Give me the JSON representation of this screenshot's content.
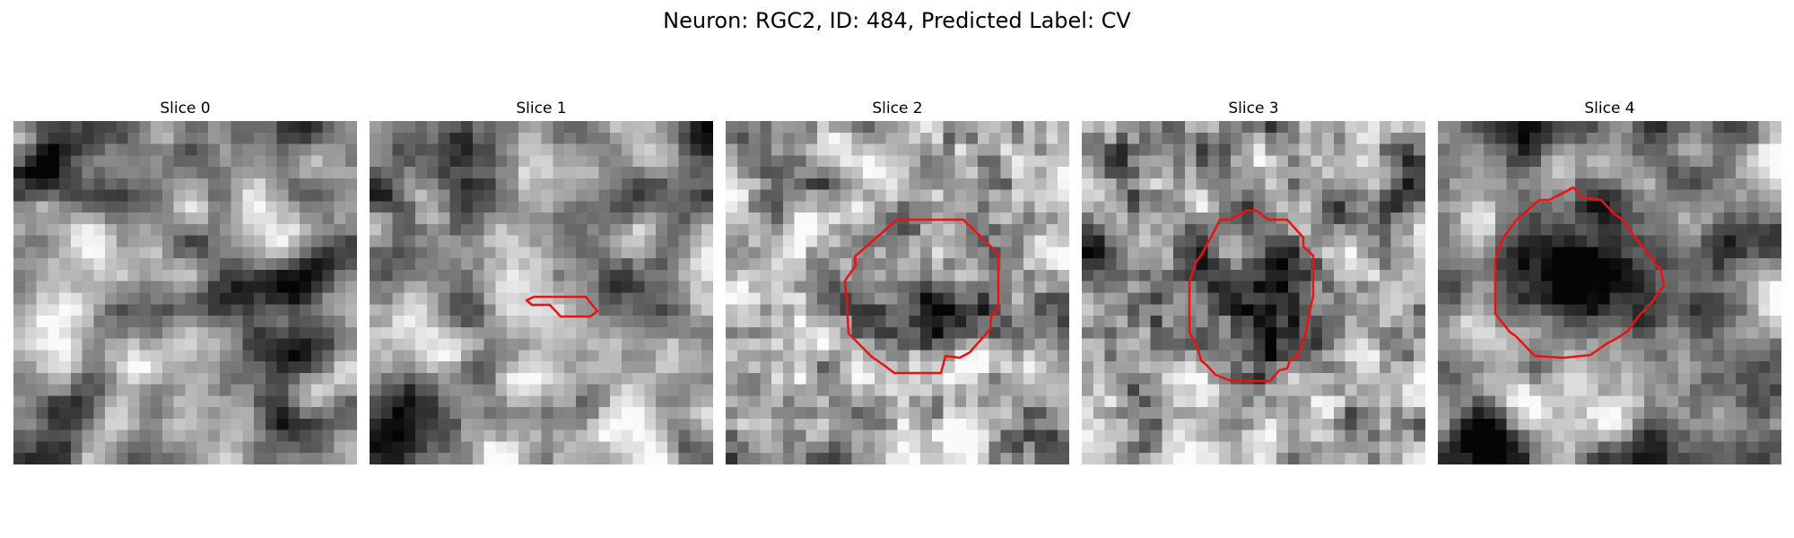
{
  "figure": {
    "suptitle": "Neuron: RGC2, ID: 484, Predicted Label: CV"
  },
  "contour_color": "#ee1111",
  "panels": [
    {
      "title": "Slice 0",
      "has_contour": false
    },
    {
      "title": "Slice 1",
      "has_contour": true
    },
    {
      "title": "Slice 2",
      "has_contour": true
    },
    {
      "title": "Slice 3",
      "has_contour": true
    },
    {
      "title": "Slice 4",
      "has_contour": true
    }
  ]
}
